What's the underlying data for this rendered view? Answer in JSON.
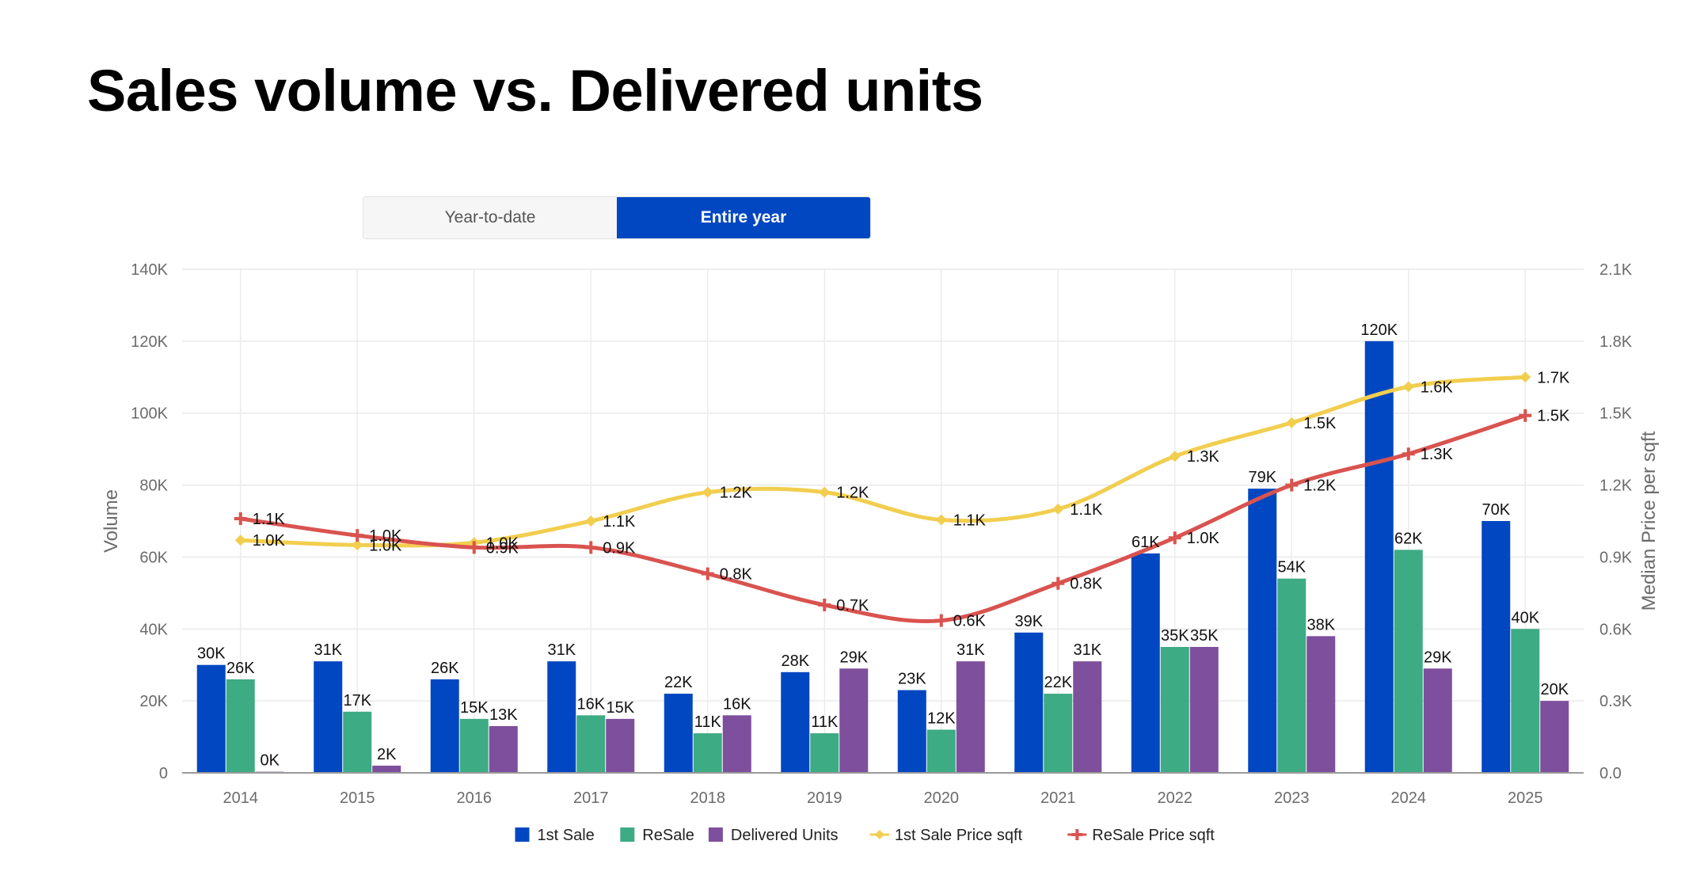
{
  "title": "Sales volume vs. Delivered units",
  "toggle": {
    "ytd_label": "Year-to-date",
    "entire_label": "Entire year",
    "selected": "entire"
  },
  "chart_data": {
    "type": "bar",
    "title": "Sales volume vs. Delivered units",
    "categories": [
      "2014",
      "2015",
      "2016",
      "2017",
      "2018",
      "2019",
      "2020",
      "2021",
      "2022",
      "2023",
      "2024",
      "2025"
    ],
    "xlabel": "",
    "ylabel": "Volume",
    "y2label": "Median Price per sqft",
    "ylim": [
      0,
      140000
    ],
    "y2lim": [
      0,
      2100
    ],
    "yticks": [
      "0",
      "20K",
      "40K",
      "60K",
      "80K",
      "100K",
      "120K",
      "140K"
    ],
    "y2ticks": [
      "0.0",
      "0.3K",
      "0.6K",
      "0.9K",
      "1.2K",
      "1.5K",
      "1.8K",
      "2.1K"
    ],
    "grid": true,
    "legend_position": "bottom-center",
    "series": [
      {
        "name": "1st Sale",
        "kind": "bar",
        "axis": "left",
        "color": "#0047c1",
        "values": [
          30000,
          31000,
          26000,
          31000,
          22000,
          28000,
          23000,
          39000,
          61000,
          79000,
          120000,
          70000
        ],
        "labels": [
          "30K",
          "31K",
          "26K",
          "31K",
          "22K",
          "28K",
          "23K",
          "39K",
          "61K",
          "79K",
          "120K",
          "70K"
        ]
      },
      {
        "name": "ReSale",
        "kind": "bar",
        "axis": "left",
        "color": "#3dab84",
        "values": [
          26000,
          17000,
          15000,
          16000,
          11000,
          11000,
          12000,
          22000,
          35000,
          54000,
          62000,
          40000
        ],
        "labels": [
          "26K",
          "17K",
          "15K",
          "16K",
          "11K",
          "11K",
          "12K",
          "22K",
          "35K",
          "54K",
          "62K",
          "40K"
        ]
      },
      {
        "name": "Delivered Units",
        "kind": "bar",
        "axis": "left",
        "color": "#7e4f9c",
        "values": [
          300,
          2000,
          13000,
          15000,
          16000,
          29000,
          31000,
          31000,
          35000,
          38000,
          29000,
          20000
        ],
        "labels": [
          "0K",
          "2K",
          "13K",
          "15K",
          "16K",
          "29K",
          "31K",
          "31K",
          "35K",
          "38K",
          "29K",
          "20K"
        ]
      },
      {
        "name": "1st Sale Price sqft",
        "kind": "line",
        "axis": "right",
        "color": "#f2ce4f",
        "marker": "diamond",
        "values": [
          970,
          950,
          960,
          1050,
          1170,
          1170,
          1055,
          1100,
          1320,
          1460,
          1610,
          1650
        ],
        "labels": [
          "1.0K",
          "1.0K",
          "1.0K",
          "1.1K",
          "1.2K",
          "1.2K",
          "1.1K",
          "1.1K",
          "1.3K",
          "1.5K",
          "1.6K",
          "1.7K"
        ]
      },
      {
        "name": "ReSale Price sqft",
        "kind": "line",
        "axis": "right",
        "color": "#d9534f",
        "marker": "cross",
        "values": [
          1060,
          990,
          940,
          940,
          830,
          700,
          635,
          790,
          980,
          1200,
          1330,
          1490
        ],
        "labels": [
          "1.1K",
          "1.0K",
          "0.9K",
          "0.9K",
          "0.8K",
          "0.7K",
          "0.6K",
          "0.8K",
          "1.0K",
          "1.2K",
          "1.3K",
          "1.5K"
        ]
      }
    ]
  }
}
